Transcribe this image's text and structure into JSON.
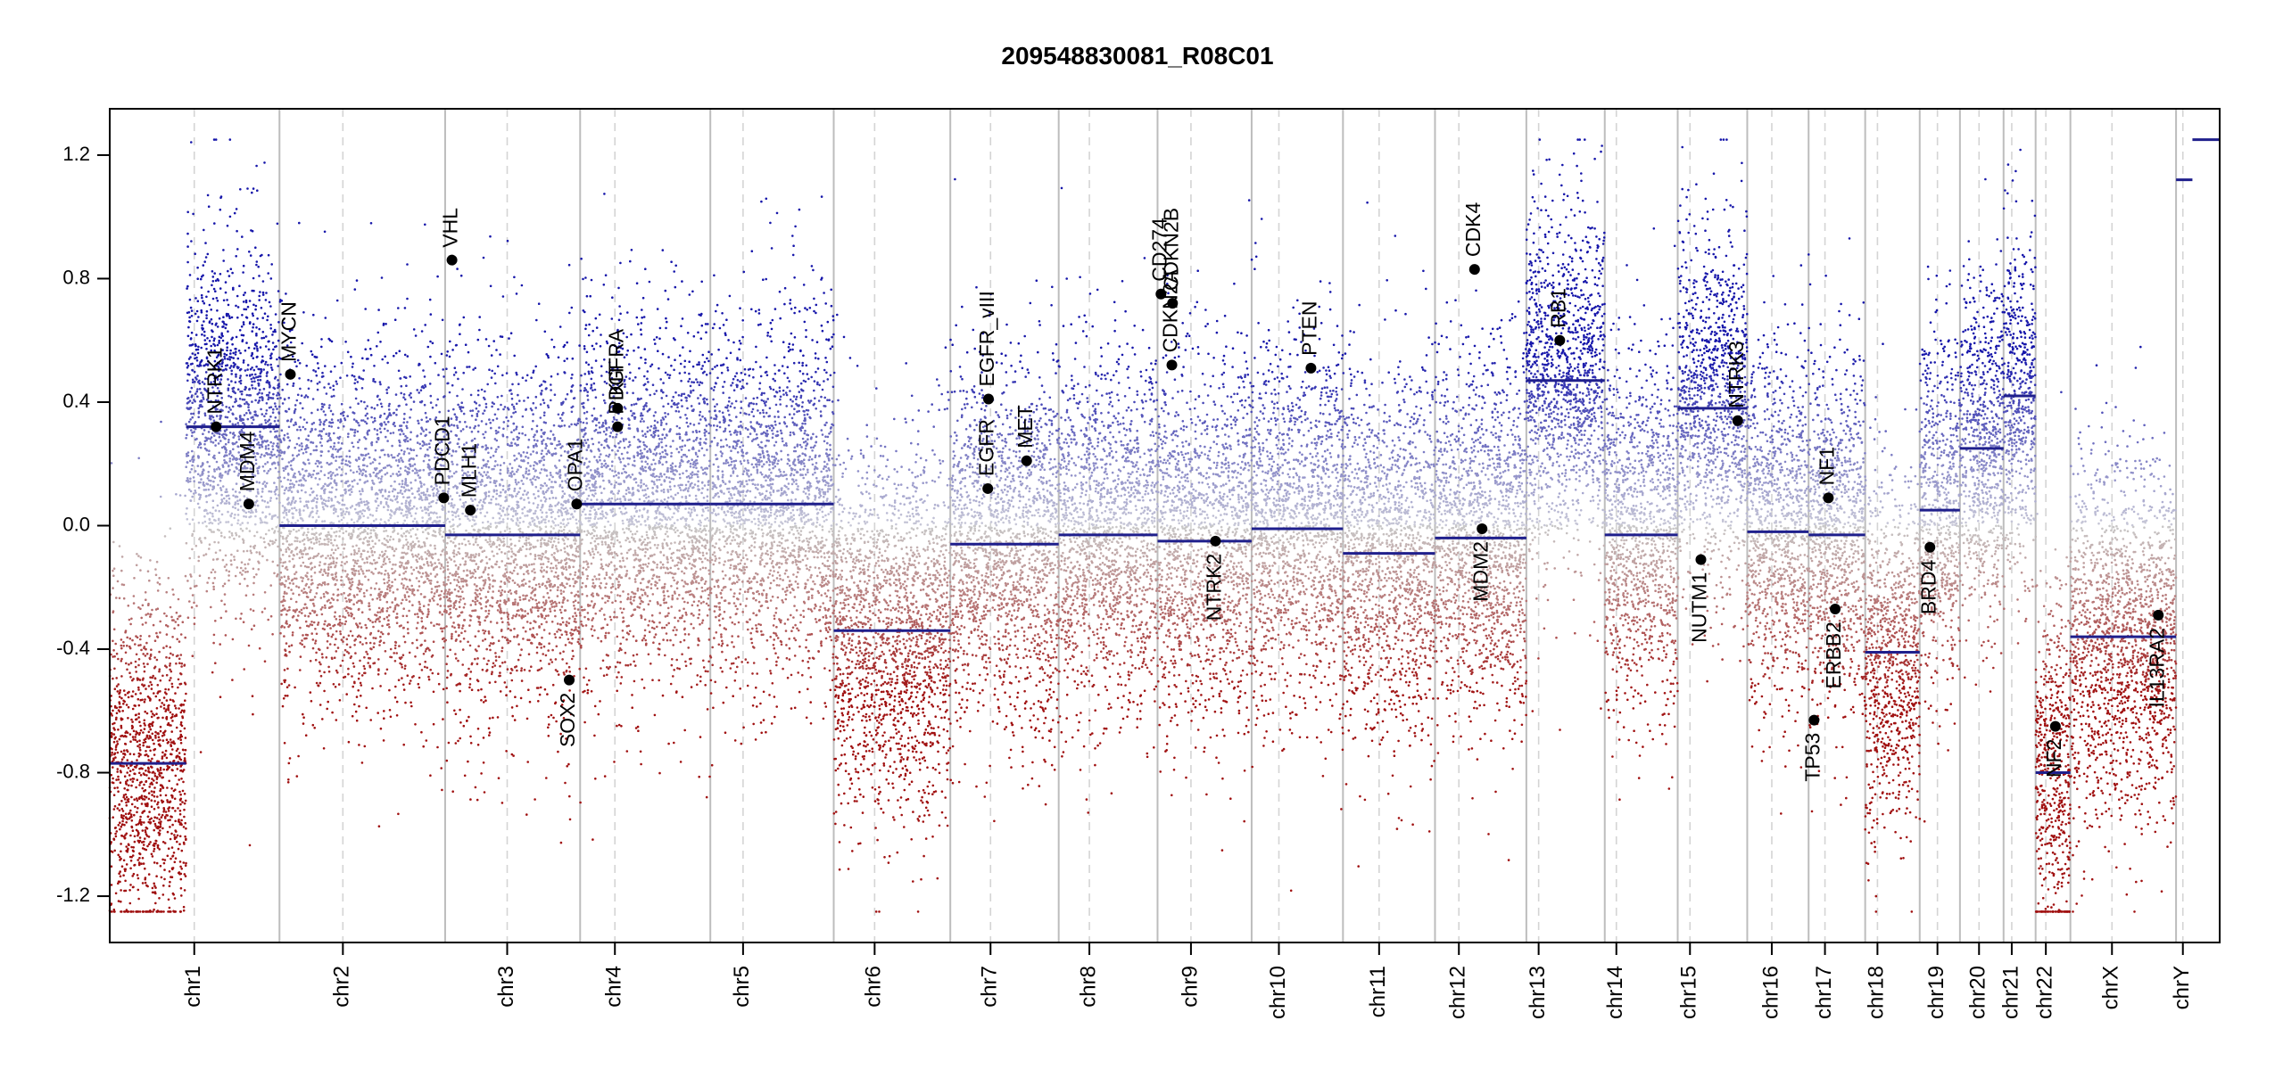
{
  "chart_data": {
    "type": "scatter",
    "title": "209548830081_R08C01",
    "xlabel": "",
    "ylabel": "",
    "ylim": [
      -1.35,
      1.35
    ],
    "y_ticks": [
      -1.2,
      -0.8,
      -0.4,
      0.0,
      0.4,
      0.8,
      1.2
    ],
    "y_tick_labels": [
      "-1.2",
      "-0.8",
      "-0.4",
      "0.0",
      "0.4",
      "0.8",
      "1.2"
    ],
    "x_unit": "cumulative genome position (Mb)",
    "xlim": [
      0,
      3095
    ],
    "colors": {
      "gain": "#1a1aa8",
      "loss": "#a01010",
      "neutral": "#c8c8c8",
      "segment": "#1f1f8c",
      "gene_point": "#000000",
      "divider": "#bdbdbd"
    },
    "chromosomes": [
      {
        "name": "chr1",
        "start": 0,
        "end": 249,
        "centromere": 124
      },
      {
        "name": "chr2",
        "start": 249,
        "end": 492,
        "centromere": 342
      },
      {
        "name": "chr3",
        "start": 492,
        "end": 690,
        "centromere": 583
      },
      {
        "name": "chr4",
        "start": 690,
        "end": 881,
        "centromere": 741
      },
      {
        "name": "chr5",
        "start": 881,
        "end": 1062,
        "centromere": 929
      },
      {
        "name": "chr6",
        "start": 1062,
        "end": 1233,
        "centromere": 1122
      },
      {
        "name": "chr7",
        "start": 1233,
        "end": 1392,
        "centromere": 1292
      },
      {
        "name": "chr8",
        "start": 1392,
        "end": 1537,
        "centromere": 1437
      },
      {
        "name": "chr9",
        "start": 1537,
        "end": 1675,
        "centromere": 1586
      },
      {
        "name": "chr10",
        "start": 1675,
        "end": 1809,
        "centromere": 1715
      },
      {
        "name": "chr11",
        "start": 1809,
        "end": 1944,
        "centromere": 1862
      },
      {
        "name": "chr12",
        "start": 1944,
        "end": 2078,
        "centromere": 1979
      },
      {
        "name": "chr13",
        "start": 2078,
        "end": 2193,
        "centromere": 2096
      },
      {
        "name": "chr14",
        "start": 2193,
        "end": 2300,
        "centromere": 2210
      },
      {
        "name": "chr15",
        "start": 2300,
        "end": 2402,
        "centromere": 2318
      },
      {
        "name": "chr16",
        "start": 2402,
        "end": 2492,
        "centromere": 2438
      },
      {
        "name": "chr17",
        "start": 2492,
        "end": 2575,
        "centromere": 2516
      },
      {
        "name": "chr18",
        "start": 2575,
        "end": 2655,
        "centromere": 2593
      },
      {
        "name": "chr19",
        "start": 2655,
        "end": 2714,
        "centromere": 2681
      },
      {
        "name": "chr20",
        "start": 2714,
        "end": 2778,
        "centromere": 2742
      },
      {
        "name": "chr21",
        "start": 2778,
        "end": 2825,
        "centromere": 2790
      },
      {
        "name": "chr22",
        "start": 2825,
        "end": 2876,
        "centromere": 2840
      },
      {
        "name": "chrX",
        "start": 2876,
        "end": 3031,
        "centromere": 2937
      },
      {
        "name": "chrY",
        "start": 3031,
        "end": 3095,
        "centromere": 3041
      }
    ],
    "segments": [
      {
        "start": 0,
        "end": 112,
        "value": -0.77
      },
      {
        "start": 112,
        "end": 249,
        "value": 0.32
      },
      {
        "start": 249,
        "end": 492,
        "value": 0.0
      },
      {
        "start": 492,
        "end": 690,
        "value": -0.03
      },
      {
        "start": 690,
        "end": 881,
        "value": 0.07
      },
      {
        "start": 881,
        "end": 1062,
        "value": 0.07
      },
      {
        "start": 1062,
        "end": 1233,
        "value": -0.34
      },
      {
        "start": 1233,
        "end": 1392,
        "value": -0.06
      },
      {
        "start": 1392,
        "end": 1537,
        "value": -0.03
      },
      {
        "start": 1537,
        "end": 1675,
        "value": -0.05
      },
      {
        "start": 1675,
        "end": 1809,
        "value": -0.01
      },
      {
        "start": 1809,
        "end": 1944,
        "value": -0.09
      },
      {
        "start": 1944,
        "end": 2078,
        "value": -0.04
      },
      {
        "start": 2078,
        "end": 2193,
        "value": 0.47
      },
      {
        "start": 2193,
        "end": 2300,
        "value": -0.03
      },
      {
        "start": 2300,
        "end": 2402,
        "value": 0.38
      },
      {
        "start": 2402,
        "end": 2492,
        "value": -0.02
      },
      {
        "start": 2492,
        "end": 2575,
        "value": -0.03
      },
      {
        "start": 2575,
        "end": 2655,
        "value": -0.41
      },
      {
        "start": 2655,
        "end": 2714,
        "value": 0.05
      },
      {
        "start": 2714,
        "end": 2778,
        "value": 0.25
      },
      {
        "start": 2778,
        "end": 2825,
        "value": 0.42
      },
      {
        "start": 2825,
        "end": 2876,
        "value": -0.8
      },
      {
        "start": 2876,
        "end": 3031,
        "value": -0.36
      },
      {
        "start": 3031,
        "end": 3055,
        "value": 1.12
      },
      {
        "start": 3055,
        "end": 3095,
        "value": 1.25
      }
    ],
    "genes": [
      {
        "name": "NTRK1",
        "x": 156,
        "y": 0.32,
        "label_side": "above"
      },
      {
        "name": "MDM4",
        "x": 204,
        "y": 0.07,
        "label_side": "above"
      },
      {
        "name": "MYCN",
        "x": 265,
        "y": 0.49,
        "label_side": "above"
      },
      {
        "name": "PDCD1",
        "x": 490,
        "y": 0.09,
        "label_side": "above"
      },
      {
        "name": "VHL",
        "x": 502,
        "y": 0.86,
        "label_side": "above"
      },
      {
        "name": "MLH1",
        "x": 529,
        "y": 0.05,
        "label_side": "above"
      },
      {
        "name": "SOX2",
        "x": 674,
        "y": -0.5,
        "label_side": "below"
      },
      {
        "name": "OPA1",
        "x": 685,
        "y": 0.07,
        "label_side": "above"
      },
      {
        "name": "KIT",
        "x": 745,
        "y": 0.38,
        "label_side": "above"
      },
      {
        "name": "PDGFRA",
        "x": 745,
        "y": 0.32,
        "label_side": "above"
      },
      {
        "name": "EGFR",
        "x": 1288,
        "y": 0.12,
        "label_side": "above"
      },
      {
        "name": "EGFR_vIII",
        "x": 1289,
        "y": 0.41,
        "label_side": "above"
      },
      {
        "name": "MET",
        "x": 1345,
        "y": 0.21,
        "label_side": "above"
      },
      {
        "name": "CD274",
        "x": 1542,
        "y": 0.75,
        "label_side": "above"
      },
      {
        "name": "CDKN2A",
        "x": 1558,
        "y": 0.52,
        "label_side": "above"
      },
      {
        "name": "CDKN2B",
        "x": 1559,
        "y": 0.72,
        "label_side": "above"
      },
      {
        "name": "NTRK2",
        "x": 1622,
        "y": -0.05,
        "label_side": "below"
      },
      {
        "name": "PTEN",
        "x": 1762,
        "y": 0.51,
        "label_side": "above"
      },
      {
        "name": "CDK4",
        "x": 2002,
        "y": 0.83,
        "label_side": "above"
      },
      {
        "name": "MDM2",
        "x": 2013,
        "y": -0.01,
        "label_side": "below"
      },
      {
        "name": "RB1",
        "x": 2127,
        "y": 0.6,
        "label_side": "above"
      },
      {
        "name": "NUTM1",
        "x": 2334,
        "y": -0.11,
        "label_side": "below"
      },
      {
        "name": "NTRK3",
        "x": 2388,
        "y": 0.34,
        "label_side": "above"
      },
      {
        "name": "TP53",
        "x": 2500,
        "y": -0.63,
        "label_side": "below"
      },
      {
        "name": "NF1",
        "x": 2521,
        "y": 0.09,
        "label_side": "above"
      },
      {
        "name": "ERBB2",
        "x": 2531,
        "y": -0.27,
        "label_side": "below"
      },
      {
        "name": "BRD4",
        "x": 2670,
        "y": -0.07,
        "label_side": "below"
      },
      {
        "name": "NF2",
        "x": 2854,
        "y": -0.65,
        "label_side": "below"
      },
      {
        "name": "IL13RA2",
        "x": 3005,
        "y": -0.29,
        "label_side": "below"
      }
    ]
  }
}
